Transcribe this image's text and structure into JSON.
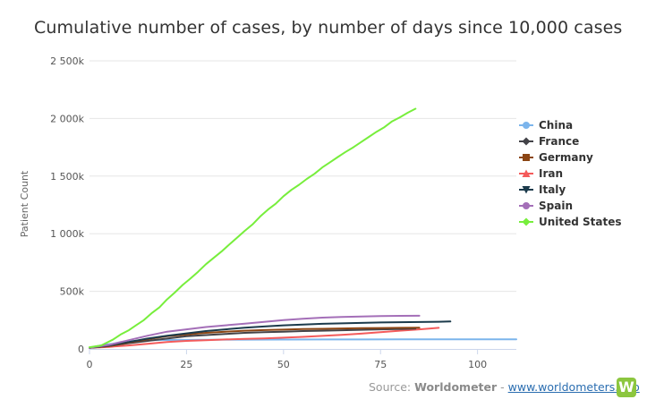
{
  "chart_data": {
    "type": "line",
    "title": "Cumulative number of cases, by number of days since 10,000 cases",
    "xlabel": "",
    "ylabel": "Patient Count",
    "xlim": [
      0,
      110
    ],
    "ylim": [
      0,
      2500000
    ],
    "x_ticks": [
      0,
      25,
      50,
      75,
      100
    ],
    "x_tick_labels": [
      "0",
      "25",
      "50",
      "75",
      "100"
    ],
    "y_ticks": [
      0,
      500000,
      1000000,
      1500000,
      2000000,
      2500000
    ],
    "y_tick_labels": [
      "0",
      "500k",
      "1 000k",
      "1 500k",
      "2 000k",
      "2 500k"
    ],
    "grid": "horizontal",
    "legend_position": "right",
    "series": [
      {
        "name": "China",
        "color": "#7cb5ec",
        "marker": "circle",
        "points": [
          [
            0,
            12000
          ],
          [
            2,
            24000
          ],
          [
            4,
            37000
          ],
          [
            6,
            45000
          ],
          [
            8,
            60000
          ],
          [
            10,
            67000
          ],
          [
            15,
            75000
          ],
          [
            20,
            78000
          ],
          [
            30,
            80000
          ],
          [
            40,
            81000
          ],
          [
            50,
            81500
          ],
          [
            60,
            82000
          ],
          [
            70,
            82500
          ],
          [
            80,
            83000
          ],
          [
            90,
            83500
          ],
          [
            100,
            84000
          ],
          [
            110,
            84000
          ]
        ]
      },
      {
        "name": "France",
        "color": "#434348",
        "marker": "diamond",
        "points": [
          [
            0,
            10000
          ],
          [
            5,
            25000
          ],
          [
            10,
            50000
          ],
          [
            15,
            70000
          ],
          [
            20,
            90000
          ],
          [
            25,
            110000
          ],
          [
            30,
            120000
          ],
          [
            35,
            130000
          ],
          [
            40,
            140000
          ],
          [
            45,
            145000
          ],
          [
            50,
            150000
          ],
          [
            55,
            155000
          ],
          [
            60,
            158000
          ],
          [
            65,
            162000
          ],
          [
            70,
            166000
          ],
          [
            75,
            170000
          ],
          [
            80,
            173000
          ],
          [
            84,
            176000
          ]
        ]
      },
      {
        "name": "Germany",
        "color": "#8b4513",
        "marker": "square",
        "points": [
          [
            0,
            10000
          ],
          [
            5,
            25000
          ],
          [
            10,
            55000
          ],
          [
            15,
            85000
          ],
          [
            20,
            110000
          ],
          [
            25,
            125000
          ],
          [
            30,
            140000
          ],
          [
            35,
            150000
          ],
          [
            40,
            158000
          ],
          [
            45,
            164000
          ],
          [
            50,
            168000
          ],
          [
            55,
            172000
          ],
          [
            60,
            175000
          ],
          [
            65,
            178000
          ],
          [
            70,
            180000
          ],
          [
            75,
            182000
          ],
          [
            80,
            183000
          ],
          [
            85,
            184000
          ]
        ]
      },
      {
        "name": "Iran",
        "color": "#f45b5b",
        "marker": "triangle",
        "points": [
          [
            0,
            10000
          ],
          [
            5,
            18000
          ],
          [
            10,
            30000
          ],
          [
            15,
            45000
          ],
          [
            20,
            60000
          ],
          [
            25,
            70000
          ],
          [
            30,
            76000
          ],
          [
            35,
            82000
          ],
          [
            40,
            87000
          ],
          [
            45,
            92000
          ],
          [
            50,
            98000
          ],
          [
            55,
            105000
          ],
          [
            60,
            113000
          ],
          [
            65,
            122000
          ],
          [
            70,
            133000
          ],
          [
            75,
            145000
          ],
          [
            80,
            158000
          ],
          [
            85,
            170000
          ],
          [
            90,
            183000
          ]
        ]
      },
      {
        "name": "Italy",
        "color": "#1b3a4b",
        "marker": "triangle-down",
        "points": [
          [
            0,
            10000
          ],
          [
            5,
            30000
          ],
          [
            10,
            60000
          ],
          [
            15,
            90000
          ],
          [
            20,
            115000
          ],
          [
            25,
            135000
          ],
          [
            30,
            155000
          ],
          [
            35,
            170000
          ],
          [
            40,
            185000
          ],
          [
            45,
            195000
          ],
          [
            50,
            205000
          ],
          [
            55,
            212000
          ],
          [
            60,
            218000
          ],
          [
            65,
            222000
          ],
          [
            70,
            226000
          ],
          [
            75,
            230000
          ],
          [
            80,
            232000
          ],
          [
            85,
            234000
          ],
          [
            90,
            236000
          ],
          [
            93,
            238000
          ]
        ]
      },
      {
        "name": "Spain",
        "color": "#a46fb8",
        "marker": "circle",
        "points": [
          [
            0,
            11000
          ],
          [
            5,
            35000
          ],
          [
            10,
            75000
          ],
          [
            15,
            115000
          ],
          [
            20,
            150000
          ],
          [
            25,
            170000
          ],
          [
            30,
            190000
          ],
          [
            35,
            205000
          ],
          [
            40,
            220000
          ],
          [
            45,
            235000
          ],
          [
            50,
            250000
          ],
          [
            55,
            262000
          ],
          [
            60,
            272000
          ],
          [
            65,
            278000
          ],
          [
            70,
            282000
          ],
          [
            75,
            285000
          ],
          [
            80,
            287000
          ],
          [
            85,
            288000
          ]
        ]
      },
      {
        "name": "United States",
        "color": "#77ee3c",
        "marker": "diamond",
        "points": [
          [
            0,
            15000
          ],
          [
            3,
            30000
          ],
          [
            6,
            80000
          ],
          [
            8,
            125000
          ],
          [
            10,
            160000
          ],
          [
            12,
            205000
          ],
          [
            14,
            250000
          ],
          [
            16,
            310000
          ],
          [
            18,
            360000
          ],
          [
            20,
            430000
          ],
          [
            22,
            490000
          ],
          [
            24,
            555000
          ],
          [
            26,
            610000
          ],
          [
            28,
            670000
          ],
          [
            30,
            735000
          ],
          [
            32,
            790000
          ],
          [
            34,
            845000
          ],
          [
            36,
            905000
          ],
          [
            38,
            965000
          ],
          [
            40,
            1025000
          ],
          [
            42,
            1080000
          ],
          [
            44,
            1150000
          ],
          [
            46,
            1210000
          ],
          [
            48,
            1260000
          ],
          [
            50,
            1325000
          ],
          [
            52,
            1380000
          ],
          [
            54,
            1425000
          ],
          [
            56,
            1475000
          ],
          [
            58,
            1520000
          ],
          [
            60,
            1575000
          ],
          [
            62,
            1620000
          ],
          [
            64,
            1665000
          ],
          [
            66,
            1710000
          ],
          [
            68,
            1750000
          ],
          [
            70,
            1795000
          ],
          [
            72,
            1840000
          ],
          [
            74,
            1885000
          ],
          [
            76,
            1925000
          ],
          [
            78,
            1975000
          ],
          [
            80,
            2010000
          ],
          [
            82,
            2050000
          ],
          [
            84,
            2085000
          ]
        ]
      }
    ]
  },
  "source": {
    "prefix": "Source: ",
    "brand": "Worldometer",
    "separator": " - ",
    "link": "www.worldometers.info",
    "logo_letter": "W"
  }
}
